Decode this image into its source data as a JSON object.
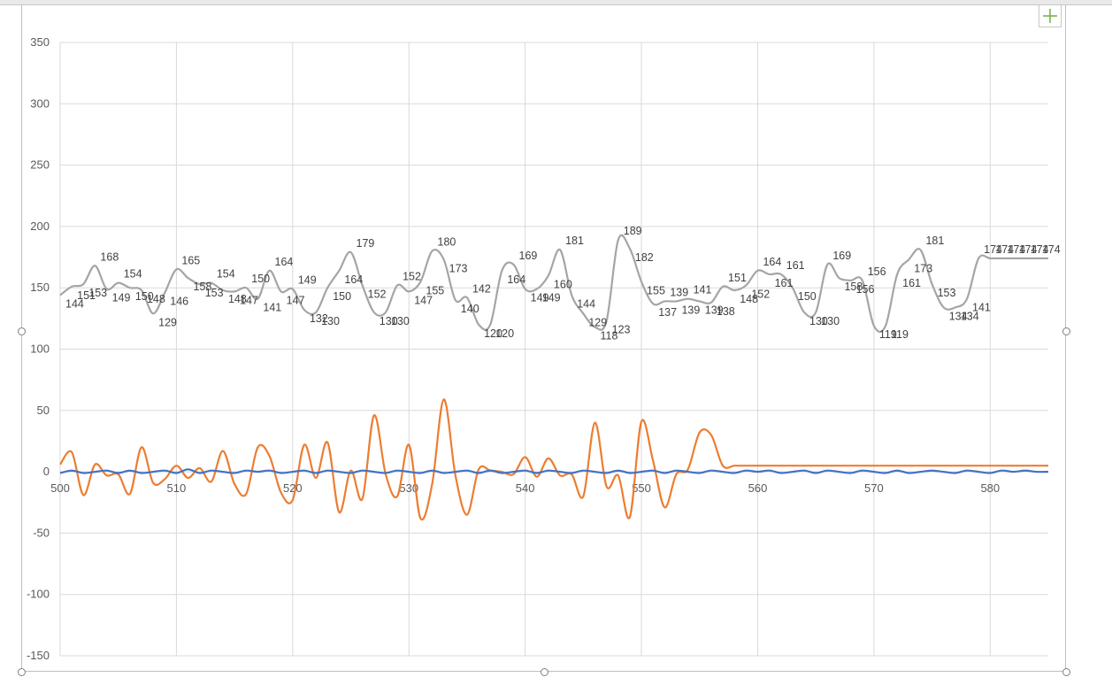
{
  "colors": {
    "series_gray": "#a5a5a5",
    "series_orange": "#ed7d31",
    "series_blue": "#4472c4",
    "gridline": "#d9d9d9",
    "axis_text": "#595959",
    "add_button": "#70ad47"
  },
  "chart_add_button_icon": "plus-icon",
  "chart_data": {
    "type": "line",
    "smooth": true,
    "x_range": [
      500,
      585
    ],
    "ylim": [
      -150,
      350
    ],
    "x_ticks": [
      500,
      510,
      520,
      530,
      540,
      550,
      560,
      570,
      580
    ],
    "y_ticks": [
      -150,
      -100,
      -50,
      0,
      50,
      100,
      150,
      200,
      250,
      300,
      350
    ],
    "grid": true,
    "legend": "none",
    "series": [
      {
        "color": "#a5a5a5",
        "labels": true,
        "x": [
          500,
          501,
          502,
          503,
          504,
          505,
          506,
          507,
          508,
          509,
          510,
          511,
          512,
          513,
          514,
          515,
          516,
          517,
          518,
          519,
          520,
          521,
          522,
          523,
          524,
          525,
          526,
          527,
          528,
          529,
          530,
          531,
          532,
          533,
          534,
          535,
          536,
          537,
          538,
          539,
          540,
          541,
          542,
          543,
          544,
          545,
          546,
          547,
          548,
          549,
          550,
          551,
          552,
          553,
          554,
          555,
          556,
          557,
          558,
          559,
          560,
          561,
          562,
          563,
          564,
          565,
          566,
          567,
          568,
          569,
          570,
          571,
          572,
          573,
          574,
          575,
          576,
          577,
          578,
          579,
          580,
          581,
          582,
          583,
          584,
          585
        ],
        "values": [
          144,
          151,
          153,
          168,
          149,
          154,
          150,
          148,
          129,
          146,
          165,
          158,
          153,
          154,
          148,
          147,
          150,
          141,
          164,
          147,
          149,
          132,
          130,
          150,
          164,
          179,
          152,
          130,
          130,
          152,
          147,
          155,
          180,
          173,
          140,
          142,
          120,
          120,
          164,
          169,
          149,
          149,
          160,
          181,
          144,
          129,
          118,
          123,
          189,
          182,
          155,
          137,
          139,
          139,
          141,
          139,
          138,
          151,
          148,
          152,
          164,
          161,
          161,
          150,
          130,
          130,
          169,
          158,
          156,
          156,
          119,
          119,
          161,
          173,
          181,
          153,
          134,
          134,
          141,
          174,
          174,
          174,
          174,
          174,
          174,
          174
        ]
      },
      {
        "color": "#ed7d31",
        "labels": false,
        "x": [
          500,
          501,
          502,
          503,
          504,
          505,
          506,
          507,
          508,
          509,
          510,
          511,
          512,
          513,
          514,
          515,
          516,
          517,
          518,
          519,
          520,
          521,
          522,
          523,
          524,
          525,
          526,
          527,
          528,
          529,
          530,
          531,
          532,
          533,
          534,
          535,
          536,
          537,
          538,
          539,
          540,
          541,
          542,
          543,
          544,
          545,
          546,
          547,
          548,
          549,
          550,
          551,
          552,
          553,
          554,
          555,
          556,
          557,
          558,
          559,
          560,
          561,
          562,
          563,
          564,
          565,
          566,
          567,
          568,
          569,
          570,
          571,
          572,
          573,
          574,
          575,
          576,
          577,
          578,
          579,
          580,
          581,
          582,
          583,
          584,
          585
        ],
        "values": [
          6,
          16,
          -19,
          6,
          -3,
          -2,
          -18,
          20,
          -9,
          -6,
          5,
          -5,
          3,
          -8,
          17,
          -10,
          -18,
          20,
          13,
          -17,
          -23,
          22,
          -5,
          24,
          -33,
          1,
          -22,
          46,
          -2,
          -20,
          22,
          -38,
          -10,
          59,
          -3,
          -35,
          2,
          1,
          0,
          -2,
          12,
          -4,
          11,
          -3,
          -2,
          -20,
          40,
          -12,
          -3,
          -37,
          41,
          9,
          -29,
          -2,
          2,
          32,
          30,
          5,
          5,
          5,
          5,
          5,
          5,
          5,
          5,
          5,
          5,
          5,
          5,
          5,
          5,
          5,
          5,
          5,
          5,
          5,
          5,
          5,
          5,
          5,
          5,
          5,
          5,
          5,
          5,
          5
        ]
      },
      {
        "color": "#4472c4",
        "labels": false,
        "x": [
          500,
          501,
          502,
          503,
          504,
          505,
          506,
          507,
          508,
          509,
          510,
          511,
          512,
          513,
          514,
          515,
          516,
          517,
          518,
          519,
          520,
          521,
          522,
          523,
          524,
          525,
          526,
          527,
          528,
          529,
          530,
          531,
          532,
          533,
          534,
          535,
          536,
          537,
          538,
          539,
          540,
          541,
          542,
          543,
          544,
          545,
          546,
          547,
          548,
          549,
          550,
          551,
          552,
          553,
          554,
          555,
          556,
          557,
          558,
          559,
          560,
          561,
          562,
          563,
          564,
          565,
          566,
          567,
          568,
          569,
          570,
          571,
          572,
          573,
          574,
          575,
          576,
          577,
          578,
          579,
          580,
          581,
          582,
          583,
          584,
          585
        ],
        "values": [
          -1,
          1,
          -1,
          0,
          1,
          -1,
          1,
          -1,
          0,
          1,
          -1,
          2,
          -1,
          1,
          0,
          -1,
          1,
          0,
          1,
          -1,
          0,
          1,
          -1,
          1,
          0,
          -1,
          1,
          0,
          -1,
          1,
          0,
          -1,
          1,
          -1,
          0,
          1,
          -1,
          1,
          -1,
          0,
          1,
          -1,
          1,
          0,
          -1,
          1,
          0,
          -1,
          1,
          -1,
          0,
          1,
          -1,
          1,
          0,
          -1,
          1,
          0,
          -1,
          1,
          0,
          1,
          -1,
          0,
          1,
          -1,
          1,
          0,
          -1,
          1,
          0,
          -1,
          1,
          -1,
          0,
          1,
          0,
          -1,
          1,
          0,
          -1,
          1,
          0,
          1,
          0,
          0
        ]
      }
    ]
  }
}
